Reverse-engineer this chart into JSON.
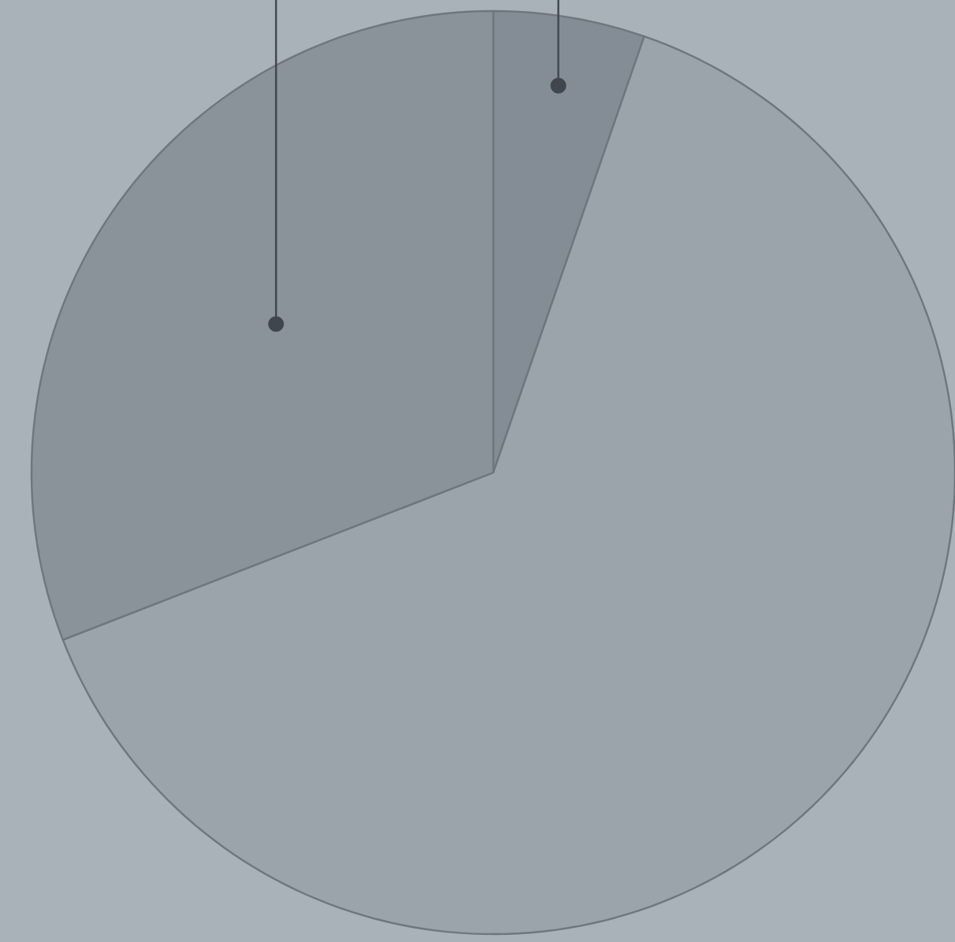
{
  "chart_data": {
    "type": "pie",
    "categories": [
      null,
      null,
      null
    ],
    "values": [
      5.3,
      63.8,
      30.9
    ],
    "colors": [
      "#848c95",
      "#9ba3ab",
      "#8a929a"
    ]
  }
}
